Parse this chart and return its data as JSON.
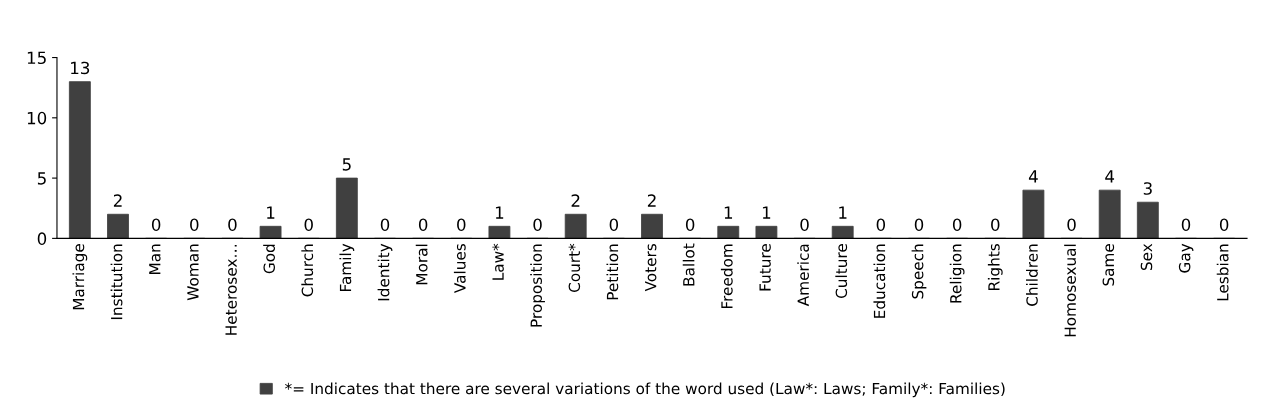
{
  "chart_data": {
    "type": "bar",
    "categories": [
      "Marriage",
      "Institution",
      "Man",
      "Woman",
      "Heterosex…",
      "God",
      "Church",
      "Family",
      "Identity",
      "Moral",
      "Values",
      "Law*",
      "Proposition",
      "Court*",
      "Petition",
      "Voters",
      "Ballot",
      "Freedom",
      "Future",
      "America",
      "Culture",
      "Education",
      "Speech",
      "Religion",
      "Rights",
      "Children",
      "Homosexual",
      "Same",
      "Sex",
      "Gay",
      "Lesbian"
    ],
    "series": [
      {
        "name": "*= Indicates that there are several variations of the word used (Law*: Laws; Family*: Families)",
        "color": "#404040",
        "values": [
          13,
          2,
          0,
          0,
          0,
          1,
          0,
          5,
          0,
          0,
          0,
          1,
          0,
          2,
          0,
          2,
          0,
          1,
          1,
          0,
          1,
          0,
          0,
          0,
          0,
          4,
          0,
          4,
          3,
          0,
          0
        ]
      }
    ],
    "ylim": [
      0,
      15
    ],
    "yticks": [
      0,
      5,
      10,
      15
    ],
    "grid": false,
    "legend": "bottom",
    "data_labels": true
  }
}
